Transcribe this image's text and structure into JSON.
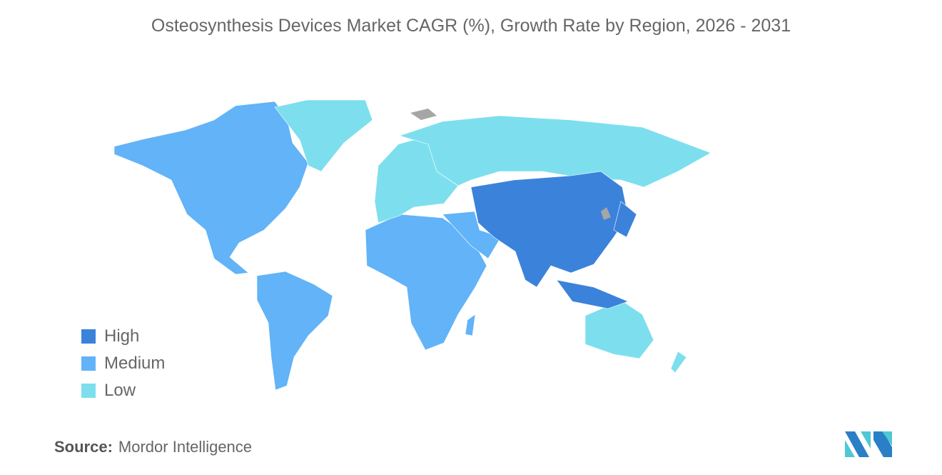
{
  "title": "Osteosynthesis Devices Market CAGR (%), Growth Rate by Region, 2026 - 2031",
  "colors": {
    "High": "#3b82db",
    "Medium": "#62b3f7",
    "Low": "#7ddfee",
    "No data": "#a6a6a6"
  },
  "legend": [
    {
      "label": "High",
      "color": "#3b82db"
    },
    {
      "label": "Medium",
      "color": "#62b3f7"
    },
    {
      "label": "Low",
      "color": "#7ddfee"
    }
  ],
  "chart_data": {
    "type": "choropleth map",
    "regions": [
      {
        "name": "North America",
        "category": "Medium"
      },
      {
        "name": "South America",
        "category": "Medium"
      },
      {
        "name": "Africa",
        "category": "Medium"
      },
      {
        "name": "Middle East",
        "category": "Medium"
      },
      {
        "name": "Europe",
        "category": "Low"
      },
      {
        "name": "Russia",
        "category": "Low"
      },
      {
        "name": "Greenland",
        "category": "Low"
      },
      {
        "name": "Australia and New Zealand",
        "category": "Low"
      },
      {
        "name": "Asia-Pacific",
        "category": "High"
      }
    ]
  },
  "source": {
    "label": "Source:",
    "value": "Mordor Intelligence"
  }
}
